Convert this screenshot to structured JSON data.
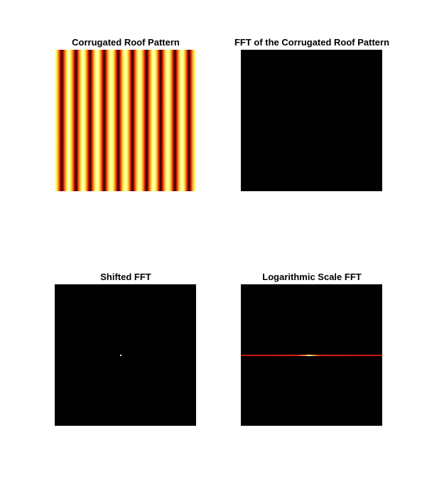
{
  "figure": {
    "subplots": [
      {
        "title": "Corrugated Roof Pattern",
        "content": "corrugated-stripes",
        "colormap": "hot",
        "stripe_count": 10
      },
      {
        "title": "FFT of the Corrugated Roof Pattern",
        "content": "black-image",
        "colormap": "hot"
      },
      {
        "title": "Shifted FFT",
        "content": "center-peak",
        "colormap": "hot"
      },
      {
        "title": "Logarithmic Scale FFT",
        "content": "horizontal-line",
        "colormap": "hot"
      }
    ],
    "colors": {
      "background": "#ffffff",
      "axes_fill": "#000000",
      "hot_dark": "#2a0000",
      "hot_red": "#c81400",
      "hot_orange": "#ff9a30",
      "hot_yellow": "#ffff50",
      "hot_white": "#ffffd8"
    }
  }
}
